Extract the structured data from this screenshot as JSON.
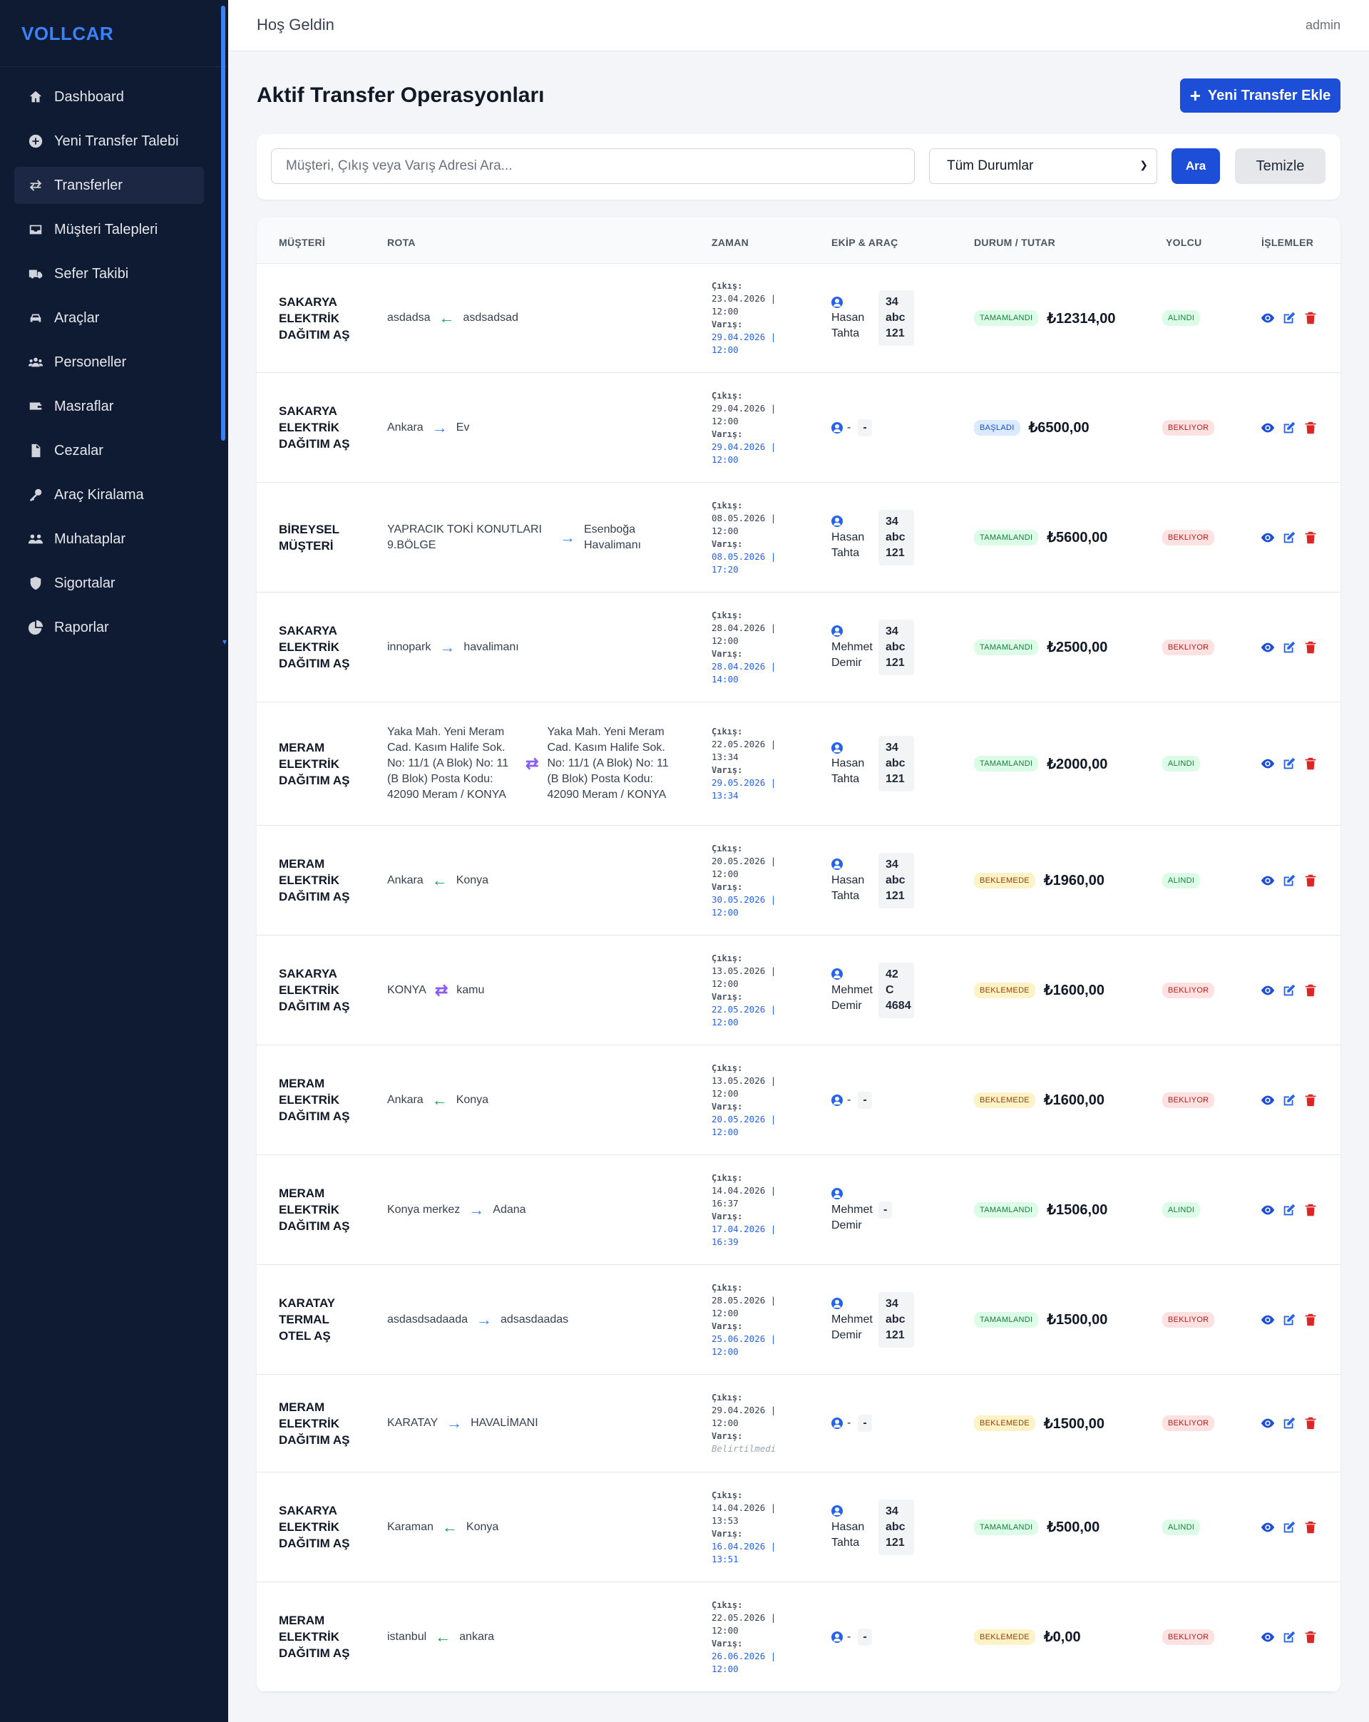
{
  "sidebar": {
    "brand": "VOLLCAR",
    "items": [
      {
        "label": "Dashboard",
        "icon": "home-icon"
      },
      {
        "label": "Yeni Transfer Talebi",
        "icon": "plus-circle-icon"
      },
      {
        "label": "Transferler",
        "icon": "exchange-icon",
        "active": true
      },
      {
        "label": "Müşteri Talepleri",
        "icon": "inbox-icon"
      },
      {
        "label": "Sefer Takibi",
        "icon": "truck-icon"
      },
      {
        "label": "Araçlar",
        "icon": "car-icon"
      },
      {
        "label": "Personeller",
        "icon": "users-icon"
      },
      {
        "label": "Masraflar",
        "icon": "wallet-icon"
      },
      {
        "label": "Cezalar",
        "icon": "file-icon"
      },
      {
        "label": "Araç Kiralama",
        "icon": "key-icon"
      },
      {
        "label": "Muhataplar",
        "icon": "people-group-icon"
      },
      {
        "label": "Sigortalar",
        "icon": "shield-icon"
      },
      {
        "label": "Raporlar",
        "icon": "pie-chart-icon"
      }
    ]
  },
  "topbar": {
    "welcome": "Hoş Geldin",
    "user": "admin"
  },
  "page": {
    "title": "Aktif Transfer Operasyonları",
    "add_button": "Yeni Transfer Ekle"
  },
  "filters": {
    "search_placeholder": "Müşteri, Çıkış veya Varış Adresi Ara...",
    "search_value": "",
    "status_selected": "Tüm Durumlar",
    "search_button": "Ara",
    "clear_button": "Temizle"
  },
  "table": {
    "headers": {
      "customer": "MÜŞTERİ",
      "route": "ROTA",
      "time": "ZAMAN",
      "crew": "EKİP & ARAÇ",
      "status": "DURUM / TUTAR",
      "passenger": "YOLCU",
      "actions": "İŞLEMLER"
    },
    "time_labels": {
      "departure": "Çıkış:",
      "arrival": "Varış:"
    },
    "rows": [
      {
        "customer": "SAKARYA ELEKTRİK DAĞITIM AŞ",
        "from": "asdadsa",
        "to": "asdsadsad",
        "dir": "left",
        "dep_date": "23.04.2026 |",
        "dep_time": "12:00",
        "arr_date": "29.04.2026 |",
        "arr_time": "12:00",
        "driver": "Hasan Tahta",
        "plate": "34 abc 121",
        "status": "TAMAMLANDI",
        "amount": "₺12314,00",
        "passenger": "ALINDI"
      },
      {
        "customer": "SAKARYA ELEKTRİK DAĞITIM AŞ",
        "from": "Ankara",
        "to": "Ev",
        "dir": "right",
        "dep_date": "29.04.2026 |",
        "dep_time": "12:00",
        "arr_date": "29.04.2026 |",
        "arr_time": "12:00",
        "driver": "-",
        "plate": "-",
        "status": "BAŞLADI",
        "amount": "₺6500,00",
        "passenger": "BEKLIYOR"
      },
      {
        "customer": "BİREYSEL MÜŞTERİ",
        "from": "YAPRACIK TOKİ KONUTLARI 9.BÖLGE",
        "to": "Esenboğa Havalimanı",
        "dir": "right",
        "dep_date": "08.05.2026 |",
        "dep_time": "12:00",
        "arr_date": "08.05.2026 |",
        "arr_time": "17:20",
        "driver": "Hasan Tahta",
        "plate": "34 abc 121",
        "status": "TAMAMLANDI",
        "amount": "₺5600,00",
        "passenger": "BEKLIYOR"
      },
      {
        "customer": "SAKARYA ELEKTRİK DAĞITIM AŞ",
        "from": "innopark",
        "to": "havalimanı",
        "dir": "right",
        "dep_date": "28.04.2026 |",
        "dep_time": "12:00",
        "arr_date": "28.04.2026 |",
        "arr_time": "14:00",
        "driver": "Mehmet Demir",
        "plate": "34 abc 121",
        "status": "TAMAMLANDI",
        "amount": "₺2500,00",
        "passenger": "BEKLIYOR"
      },
      {
        "customer": "MERAM ELEKTRİK DAĞITIM AŞ",
        "from": "Yaka Mah. Yeni Meram Cad. Kasım Halife Sok. No: 11/1 (A Blok) No: 11 (B Blok) Posta Kodu: 42090 Meram / KONYA",
        "to": "Yaka Mah. Yeni Meram Cad. Kasım Halife Sok. No: 11/1 (A Blok) No: 11 (B Blok) Posta Kodu: 42090 Meram / KONYA",
        "dir": "both",
        "dep_date": "22.05.2026 |",
        "dep_time": "13:34",
        "arr_date": "29.05.2026 |",
        "arr_time": "13:34",
        "driver": "Hasan Tahta",
        "plate": "34 abc 121",
        "status": "TAMAMLANDI",
        "amount": "₺2000,00",
        "passenger": "ALINDI"
      },
      {
        "customer": "MERAM ELEKTRİK DAĞITIM AŞ",
        "from": "Ankara",
        "to": "Konya",
        "dir": "left",
        "dep_date": "20.05.2026 |",
        "dep_time": "12:00",
        "arr_date": "30.05.2026 |",
        "arr_time": "12:00",
        "driver": "Hasan Tahta",
        "plate": "34 abc 121",
        "status": "BEKLEMEDE",
        "amount": "₺1960,00",
        "passenger": "ALINDI"
      },
      {
        "customer": "SAKARYA ELEKTRİK DAĞITIM AŞ",
        "from": "KONYA",
        "to": "kamu",
        "dir": "both",
        "dep_date": "13.05.2026 |",
        "dep_time": "12:00",
        "arr_date": "22.05.2026 |",
        "arr_time": "12:00",
        "driver": "Mehmet Demir",
        "plate": "42 C 4684",
        "status": "BEKLEMEDE",
        "amount": "₺1600,00",
        "passenger": "BEKLIYOR"
      },
      {
        "customer": "MERAM ELEKTRİK DAĞITIM AŞ",
        "from": "Ankara",
        "to": "Konya",
        "dir": "left",
        "dep_date": "13.05.2026 |",
        "dep_time": "12:00",
        "arr_date": "20.05.2026 |",
        "arr_time": "12:00",
        "driver": "-",
        "plate": "-",
        "status": "BEKLEMEDE",
        "amount": "₺1600,00",
        "passenger": "BEKLIYOR"
      },
      {
        "customer": "MERAM ELEKTRİK DAĞITIM AŞ",
        "from": "Konya merkez",
        "to": "Adana",
        "dir": "right",
        "dep_date": "14.04.2026 |",
        "dep_time": "16:37",
        "arr_date": "17.04.2026 |",
        "arr_time": "16:39",
        "driver": "Mehmet Demir",
        "plate": "-",
        "status": "TAMAMLANDI",
        "amount": "₺1506,00",
        "passenger": "ALINDI"
      },
      {
        "customer": "KARATAY TERMAL OTEL AŞ",
        "from": "asdasdsadaada",
        "to": "adsasdaadas",
        "dir": "right",
        "dep_date": "28.05.2026 |",
        "dep_time": "12:00",
        "arr_date": "25.06.2026 |",
        "arr_time": "12:00",
        "driver": "Mehmet Demir",
        "plate": "34 abc 121",
        "status": "TAMAMLANDI",
        "amount": "₺1500,00",
        "passenger": "BEKLIYOR"
      },
      {
        "customer": "MERAM ELEKTRİK DAĞITIM AŞ",
        "from": "KARATAY",
        "to": "HAVALİMANI",
        "dir": "right",
        "dep_date": "29.04.2026 |",
        "dep_time": "12:00",
        "arr_date": "",
        "arr_time": "",
        "arr_unset": "Belirtilmedi",
        "driver": "-",
        "plate": "-",
        "status": "BEKLEMEDE",
        "amount": "₺1500,00",
        "passenger": "BEKLIYOR"
      },
      {
        "customer": "SAKARYA ELEKTRİK DAĞITIM AŞ",
        "from": "Karaman",
        "to": "Konya",
        "dir": "left",
        "dep_date": "14.04.2026 |",
        "dep_time": "13:53",
        "arr_date": "16.04.2026 |",
        "arr_time": "13:51",
        "driver": "Hasan Tahta",
        "plate": "34 abc 121",
        "status": "TAMAMLANDI",
        "amount": "₺500,00",
        "passenger": "ALINDI"
      },
      {
        "customer": "MERAM ELEKTRİK DAĞITIM AŞ",
        "from": "istanbul",
        "to": "ankara",
        "dir": "left",
        "dep_date": "22.05.2026 |",
        "dep_time": "12:00",
        "arr_date": "26.06.2026 |",
        "arr_time": "12:00",
        "driver": "-",
        "plate": "-",
        "status": "BEKLEMEDE",
        "amount": "₺0,00",
        "passenger": "BEKLIYOR"
      }
    ]
  },
  "colors": {
    "sidebar_bg": "#0f1a33",
    "brand": "#3b82f6",
    "primary_button": "#1d4ed8",
    "status_completed": "#dcfce7",
    "status_started": "#dbeafe",
    "status_pending": "#fef3c7",
    "passenger_waiting": "#fee2e2",
    "action_view": "#1d4ed8",
    "action_edit": "#2563eb",
    "action_delete": "#dc2626"
  }
}
